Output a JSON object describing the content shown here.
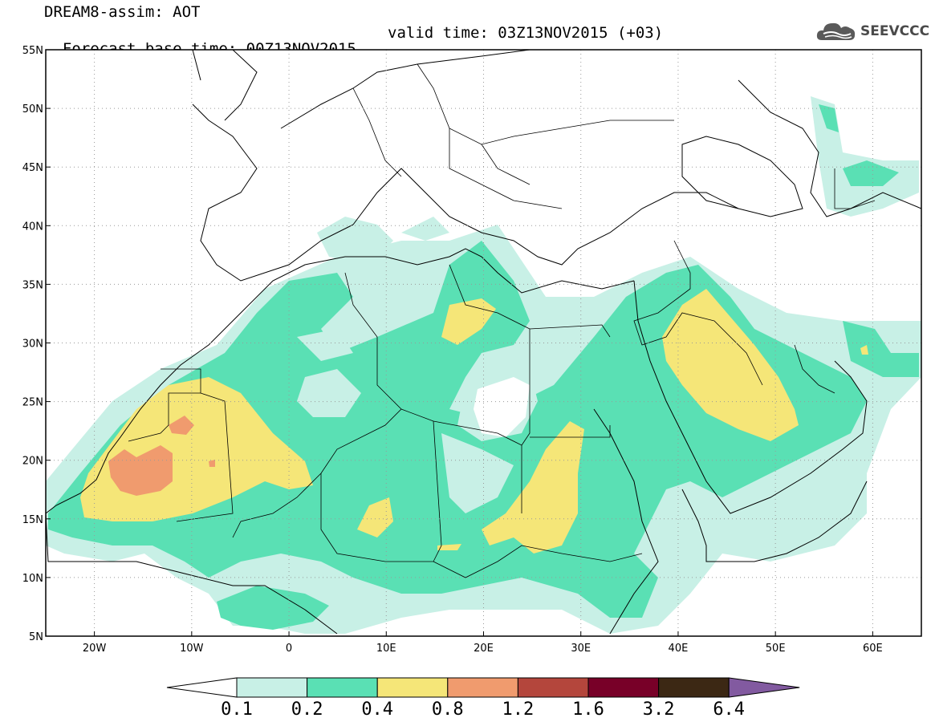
{
  "title": {
    "line1": "DREAM8-assim: AOT",
    "line2": "Forecast base time: 00Z13NOV2015",
    "valid": "valid time: 03Z13NOV2015 (+03)"
  },
  "logo": {
    "text": "SEEVCCC",
    "icon": "cloud-logo-icon"
  },
  "map": {
    "lon_range": [
      -25,
      65
    ],
    "lat_range": [
      5,
      55
    ],
    "lon_ticks": [
      {
        "value": -20,
        "label": "20W"
      },
      {
        "value": -10,
        "label": "10W"
      },
      {
        "value": 0,
        "label": "0"
      },
      {
        "value": 10,
        "label": "10E"
      },
      {
        "value": 20,
        "label": "20E"
      },
      {
        "value": 30,
        "label": "30E"
      },
      {
        "value": 40,
        "label": "40E"
      },
      {
        "value": 50,
        "label": "50E"
      },
      {
        "value": 60,
        "label": "60E"
      }
    ],
    "lat_ticks": [
      {
        "value": 55,
        "label": "55N"
      },
      {
        "value": 50,
        "label": "50N"
      },
      {
        "value": 45,
        "label": "45N"
      },
      {
        "value": 40,
        "label": "40N"
      },
      {
        "value": 35,
        "label": "35N"
      },
      {
        "value": 30,
        "label": "30N"
      },
      {
        "value": 25,
        "label": "25N"
      },
      {
        "value": 20,
        "label": "20N"
      },
      {
        "value": 15,
        "label": "15N"
      },
      {
        "value": 10,
        "label": "10N"
      },
      {
        "value": 5,
        "label": "5N"
      }
    ],
    "grid": "dotted"
  },
  "colorbar": {
    "levels": [
      "0.1",
      "0.2",
      "0.4",
      "0.8",
      "1.2",
      "1.6",
      "3.2",
      "6.4"
    ],
    "colors": [
      "#ffffff",
      "#c8f0e6",
      "#5ae0b4",
      "#f5e678",
      "#f09b6e",
      "#b4463c",
      "#780028",
      "#3c2814",
      "#825aa0"
    ]
  }
}
